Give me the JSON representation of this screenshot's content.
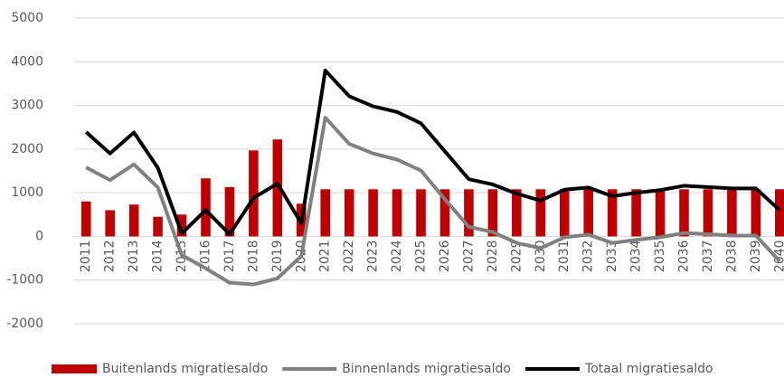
{
  "chart_data": {
    "type": "bar_line",
    "categories": [
      "2011",
      "2012",
      "2013",
      "2014",
      "2015",
      "2016",
      "2017",
      "2018",
      "2019",
      "2020",
      "2021",
      "2022",
      "2023",
      "2024",
      "2025",
      "2026",
      "2027",
      "2028",
      "2029",
      "2030",
      "2031",
      "2032",
      "2033",
      "2034",
      "2035",
      "2036",
      "2037",
      "2038",
      "2039",
      "2040"
    ],
    "series": [
      {
        "name": "Buitenlands migratiesaldo",
        "type": "bar",
        "color": "#c00000",
        "values": [
          800,
          600,
          730,
          450,
          500,
          1330,
          1130,
          1970,
          2220,
          750,
          1080,
          1080,
          1080,
          1080,
          1080,
          1080,
          1080,
          1080,
          1080,
          1080,
          1080,
          1080,
          1080,
          1080,
          1080,
          1080,
          1080,
          1080,
          1080,
          1080
        ]
      },
      {
        "name": "Binnenlands migratiesaldo",
        "type": "line",
        "color": "#808080",
        "values": [
          1580,
          1290,
          1650,
          1120,
          -430,
          -730,
          -1060,
          -1100,
          -960,
          -450,
          2720,
          2120,
          1900,
          1760,
          1510,
          850,
          220,
          100,
          -150,
          -270,
          -20,
          40,
          -150,
          -80,
          -20,
          80,
          50,
          20,
          20,
          -570
        ]
      },
      {
        "name": "Totaal migratiesaldo",
        "type": "line",
        "color": "#000000",
        "values": [
          2390,
          1900,
          2380,
          1570,
          70,
          600,
          50,
          880,
          1210,
          300,
          3800,
          3210,
          2980,
          2850,
          2590,
          1950,
          1310,
          1190,
          980,
          820,
          1070,
          1120,
          920,
          1000,
          1060,
          1160,
          1130,
          1100,
          1100,
          600
        ]
      }
    ],
    "ylim": [
      -2000,
      5000
    ],
    "yticks": [
      -2000,
      -1000,
      0,
      1000,
      2000,
      3000,
      4000,
      5000
    ],
    "grid": true,
    "legend": "bottom"
  }
}
